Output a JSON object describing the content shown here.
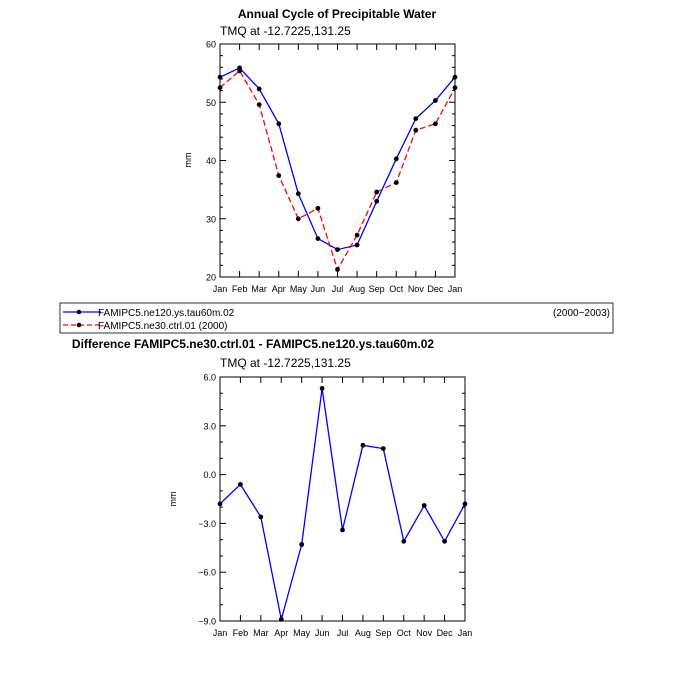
{
  "chart_data": [
    {
      "type": "line",
      "title": "Annual Cycle of Precipitable Water",
      "subtitle": "TMQ at -12.7225,131.25",
      "ylabel": "mm",
      "xlabel": "",
      "categories": [
        "Jan",
        "Feb",
        "Mar",
        "Apr",
        "May",
        "Jun",
        "Jul",
        "Aug",
        "Sep",
        "Oct",
        "Nov",
        "Dec",
        "Jan"
      ],
      "ylim": [
        20,
        60
      ],
      "yticks": [
        "20",
        "30",
        "40",
        "50",
        "60"
      ],
      "grid": false,
      "series": [
        {
          "name": "FAMIPC5.ne120.ys.tau60m.02",
          "color": "#0000ff",
          "dash": "solid",
          "values": [
            54.3,
            55.9,
            52.3,
            46.3,
            34.3,
            26.6,
            24.7,
            25.5,
            33.0,
            40.3,
            47.2,
            50.3,
            54.3
          ]
        },
        {
          "name": "FAMIPC5.ne30.ctrl.01 (2000)",
          "color": "#ff0000",
          "dash": "dashed",
          "values": [
            52.5,
            55.4,
            49.6,
            37.4,
            30.0,
            31.8,
            21.3,
            27.2,
            34.6,
            36.2,
            45.2,
            46.3,
            52.5
          ]
        }
      ],
      "legend": {
        "placement": "below-plot",
        "period_label": "(2000−2003)"
      }
    },
    {
      "type": "line",
      "title": "Difference FAMIPC5.ne30.ctrl.01 - FAMIPC5.ne120.ys.tau60m.02",
      "subtitle": "TMQ at -12.7225,131.25",
      "ylabel": "mm",
      "xlabel": "",
      "categories": [
        "Jan",
        "Feb",
        "Mar",
        "Apr",
        "May",
        "Jun",
        "Jul",
        "Aug",
        "Sep",
        "Oct",
        "Nov",
        "Dec",
        "Jan"
      ],
      "ylim": [
        -9,
        6
      ],
      "yticks": [
        "−9.0",
        "−6.0",
        "−3.0",
        "0.0",
        "3.0",
        "6.0"
      ],
      "grid": false,
      "series": [
        {
          "name": "",
          "color": "#0000ff",
          "dash": "solid",
          "values": [
            -1.8,
            -0.6,
            -2.6,
            -8.9,
            -4.3,
            5.3,
            -3.4,
            1.8,
            1.6,
            -4.1,
            -1.9,
            -4.1,
            -1.8
          ]
        }
      ]
    }
  ]
}
